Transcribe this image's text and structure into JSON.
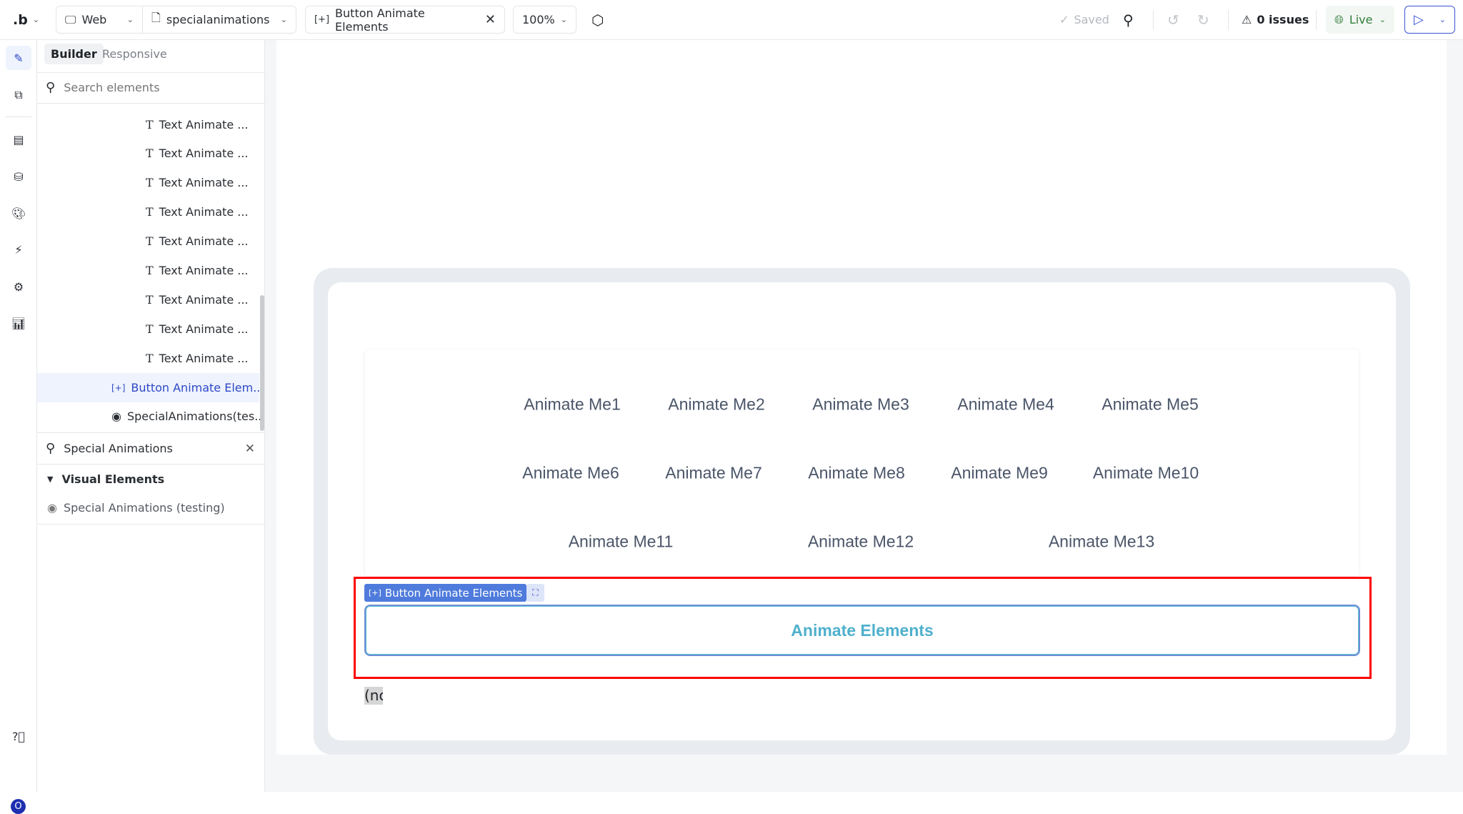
{
  "topbar": {
    "logo": ".b",
    "platform": "Web",
    "page": "specialanimations",
    "open_tab": "Button Animate Elements",
    "zoom": "100%",
    "saved": "Saved",
    "issues": "0 issues",
    "live": "Live"
  },
  "rail": {
    "icons": [
      "pencil-icon",
      "tree-icon",
      "layout-icon",
      "database-icon",
      "palette-icon",
      "plug-icon",
      "gear-icon",
      "chart-icon",
      "help-icon"
    ],
    "avatar": "O"
  },
  "panel": {
    "tabs": [
      "Builder",
      "Responsive"
    ],
    "search_placeholder": "Search elements",
    "tree": [
      {
        "label": "Text Animate ...",
        "type": "text"
      },
      {
        "label": "Text Animate ...",
        "type": "text"
      },
      {
        "label": "Text Animate ...",
        "type": "text"
      },
      {
        "label": "Text Animate ...",
        "type": "text"
      },
      {
        "label": "Text Animate ...",
        "type": "text"
      },
      {
        "label": "Text Animate ...",
        "type": "text"
      },
      {
        "label": "Text Animate ...",
        "type": "text"
      },
      {
        "label": "Text Animate ...",
        "type": "text"
      },
      {
        "label": "Text Animate ...",
        "type": "text"
      },
      {
        "label": "Button Animate Elem...",
        "type": "button",
        "selected": true
      },
      {
        "label": "SpecialAnimations(tes...",
        "type": "component"
      }
    ],
    "library_search": "Special Animations",
    "section": "Visual Elements",
    "library_items": [
      "Special Animations (testing)"
    ]
  },
  "canvas": {
    "animate_items": [
      "Animate Me1",
      "Animate Me2",
      "Animate Me3",
      "Animate Me4",
      "Animate Me5",
      "Animate Me6",
      "Animate Me7",
      "Animate Me8",
      "Animate Me9",
      "Animate Me10",
      "Animate Me11",
      "Animate Me12",
      "Animate Me13"
    ],
    "selection_label": "Button Animate Elements",
    "button_label": "Animate Elements",
    "clipped_text": "(nc",
    "colors": {
      "selection": "#ff0000",
      "chip": "#4f7bdc",
      "button_text": "#4fb0cc",
      "accent": "#2e48c7"
    }
  }
}
